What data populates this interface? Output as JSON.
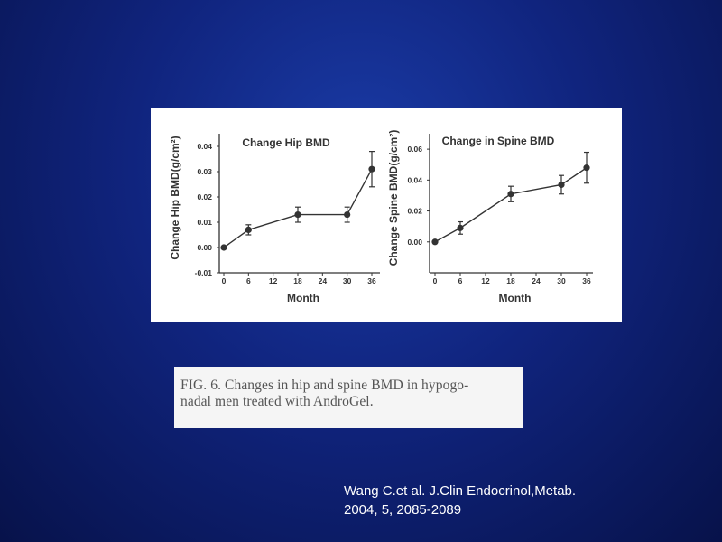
{
  "chart_data": [
    {
      "type": "line",
      "title": "Change Hip BMD",
      "xlabel": "Month",
      "ylabel": "Change Hip BMD(g/cm²)",
      "xticks": [
        "0",
        "6",
        "12",
        "18",
        "24",
        "30",
        "36"
      ],
      "yticks": [
        "-0.01",
        "0.00",
        "0.01",
        "0.02",
        "0.03",
        "0.04"
      ],
      "xlim": [
        0,
        36
      ],
      "ylim": [
        -0.01,
        0.045
      ],
      "grid": false,
      "series": [
        {
          "x": [
            0,
            6,
            18,
            30,
            36
          ],
          "y": [
            0.0,
            0.007,
            0.013,
            0.013,
            0.031
          ],
          "error": [
            0,
            0.002,
            0.003,
            0.003,
            0.007
          ]
        }
      ]
    },
    {
      "type": "line",
      "title": "Change in Spine BMD",
      "xlabel": "Month",
      "ylabel": "Change Spine BMD(g/cm²)",
      "xticks": [
        "0",
        "6",
        "12",
        "18",
        "24",
        "30",
        "36"
      ],
      "yticks": [
        "0.00",
        "0.02",
        "0.04",
        "0.06"
      ],
      "xlim": [
        0,
        36
      ],
      "ylim": [
        -0.02,
        0.07
      ],
      "grid": false,
      "series": [
        {
          "x": [
            0,
            6,
            18,
            30,
            36
          ],
          "y": [
            0.0,
            0.009,
            0.031,
            0.037,
            0.048
          ],
          "error": [
            0,
            0.004,
            0.005,
            0.006,
            0.01
          ]
        }
      ]
    }
  ],
  "caption": {
    "text": "FIG. 6. Changes in hip and spine BMD in hypogo-\nnadal men treated with AndroGel."
  },
  "citation": {
    "line1": "Wang C.et al. J.Clin Endocrinol,Metab.",
    "line2": "2004, 5, 2085-2089"
  },
  "colors": {
    "background": "#10247e",
    "marker": "#333333",
    "text": "#ffffff"
  }
}
